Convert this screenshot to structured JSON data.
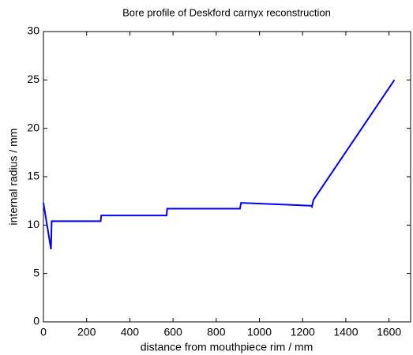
{
  "chart_data": {
    "type": "line",
    "title": "Bore profile of Deskford carnyx reconstruction",
    "xlabel": "distance from mouthpiece rim / mm",
    "ylabel": "internal radius / mm",
    "x": [
      0,
      35,
      38,
      265,
      268,
      570,
      573,
      910,
      915,
      1240,
      1243,
      1250,
      1625
    ],
    "series": [
      {
        "color": "#0000ff",
        "values": [
          12.3,
          7.5,
          10.4,
          10.4,
          11.0,
          11.0,
          11.7,
          11.7,
          12.3,
          12.0,
          11.9,
          12.6,
          25.0
        ]
      }
    ],
    "xlim": [
      0,
      1700
    ],
    "xticks": [
      0,
      200,
      400,
      600,
      800,
      1000,
      1200,
      1400,
      1600
    ],
    "ylim": [
      0,
      30
    ],
    "yticks": [
      0,
      5,
      10,
      15,
      20,
      25,
      30
    ]
  }
}
